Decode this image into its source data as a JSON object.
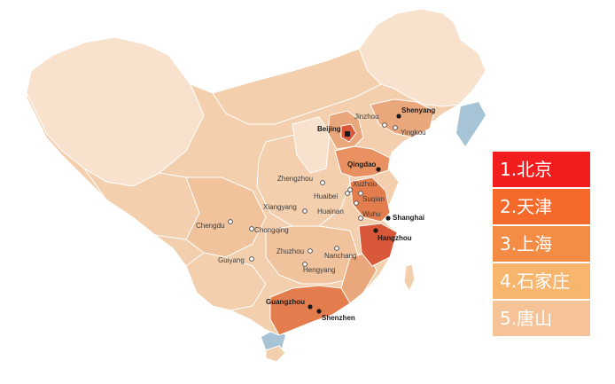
{
  "colors": {
    "land_light": "#f3cfae",
    "land_pale": "#f8e2cd",
    "land_mid": "#eba77c",
    "land_dark": "#e47d4d",
    "land_darkest": "#d9583a",
    "ocean": "#a7c4d6",
    "border": "#ffffff"
  },
  "cities": [
    {
      "name": "Shenyang",
      "bold": true,
      "marker": "dot"
    },
    {
      "name": "Jinzhou",
      "bold": false,
      "marker": "circle"
    },
    {
      "name": "Yingkou",
      "bold": false,
      "marker": "circle"
    },
    {
      "name": "Beijing",
      "bold": true,
      "marker": "square"
    },
    {
      "name": "Qingdao",
      "bold": true,
      "marker": "dot"
    },
    {
      "name": "Zhengzhou",
      "bold": false,
      "marker": "circle"
    },
    {
      "name": "Xuzhou",
      "bold": false,
      "marker": "circle"
    },
    {
      "name": "Huaibei",
      "bold": false,
      "marker": "circle"
    },
    {
      "name": "Suqian",
      "bold": false,
      "marker": "circle"
    },
    {
      "name": "Huainan",
      "bold": false,
      "marker": "circle"
    },
    {
      "name": "Xiangyang",
      "bold": false,
      "marker": "circle"
    },
    {
      "name": "Wuhu",
      "bold": false,
      "marker": "circle"
    },
    {
      "name": "Shanghai",
      "bold": true,
      "marker": "dot"
    },
    {
      "name": "Chengdu",
      "bold": false,
      "marker": "circle"
    },
    {
      "name": "Chongqing",
      "bold": false,
      "marker": "circle"
    },
    {
      "name": "Hangzhou",
      "bold": true,
      "marker": "dot"
    },
    {
      "name": "Zhuzhou",
      "bold": false,
      "marker": "circle"
    },
    {
      "name": "Nanchang",
      "bold": false,
      "marker": "circle"
    },
    {
      "name": "Guiyang",
      "bold": false,
      "marker": "circle"
    },
    {
      "name": "Hengyang",
      "bold": false,
      "marker": "circle"
    },
    {
      "name": "Guangzhou",
      "bold": true,
      "marker": "dot"
    },
    {
      "name": "Shenzhen",
      "bold": true,
      "marker": "dot"
    }
  ],
  "legend": [
    {
      "label": "1.北京",
      "color": "#f21e1e"
    },
    {
      "label": "2.天津",
      "color": "#f56a2a"
    },
    {
      "label": "3.上海",
      "color": "#f58c45"
    },
    {
      "label": "4.石家庄",
      "color": "#f8b56d"
    },
    {
      "label": "5.唐山",
      "color": "#f6c398"
    }
  ]
}
